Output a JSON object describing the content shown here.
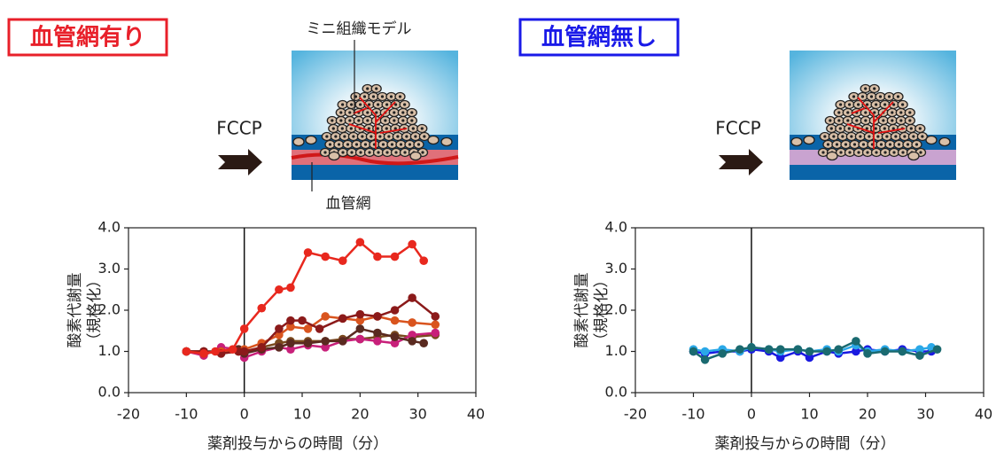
{
  "chart_data": [
    {
      "type": "line",
      "title": "血管網有り",
      "title_color": "#e8202a",
      "annotations": [
        "FCCP",
        "ミニ組織モデル",
        "血管網"
      ],
      "ylabel": [
        "酸素代謝量",
        "（規格化）"
      ],
      "xlabel": "薬剤投与からの時間（分）",
      "xlim": [
        -20,
        40
      ],
      "ylim": [
        0,
        4
      ],
      "xticks": [
        -20,
        -10,
        0,
        10,
        20,
        30,
        40
      ],
      "yticks": [
        {
          "value": 0,
          "label": "0.0"
        },
        {
          "value": 1,
          "label": "1.0"
        },
        {
          "value": 2,
          "label": "2.0"
        },
        {
          "value": 3,
          "label": "3.0"
        },
        {
          "value": 4,
          "label": "4.0"
        }
      ],
      "vline": 0,
      "series": [
        {
          "color": "#7a4a1e",
          "x": [
            -10,
            -7,
            -4,
            -1,
            0,
            3,
            6,
            8,
            11,
            14,
            17,
            20,
            23,
            26,
            29,
            33
          ],
          "values": [
            1.0,
            1.0,
            0.95,
            1.0,
            0.95,
            1.1,
            1.2,
            1.25,
            1.25,
            1.25,
            1.3,
            1.3,
            1.35,
            1.4,
            1.35,
            1.4
          ]
        },
        {
          "color": "#c8207a",
          "x": [
            -10,
            -7,
            -4,
            -1,
            0,
            3,
            6,
            8,
            11,
            14,
            17,
            20,
            23,
            26,
            29,
            33
          ],
          "values": [
            1.0,
            0.9,
            1.1,
            1.05,
            0.85,
            1.0,
            1.1,
            1.05,
            1.15,
            1.1,
            1.25,
            1.3,
            1.25,
            1.2,
            1.4,
            1.45
          ]
        },
        {
          "color": "#5a2a20",
          "x": [
            -10,
            -7,
            -4,
            -1,
            0,
            3,
            6,
            8,
            11,
            14,
            17,
            20,
            23,
            26,
            29,
            31
          ],
          "values": [
            1.0,
            1.0,
            1.0,
            1.05,
            0.95,
            1.05,
            1.1,
            1.2,
            1.2,
            1.25,
            1.25,
            1.55,
            1.45,
            1.35,
            1.25,
            1.2
          ]
        },
        {
          "color": "#d9541e",
          "x": [
            -10,
            -7,
            -4,
            -1,
            0,
            3,
            6,
            8,
            11,
            14,
            17,
            20,
            23,
            26,
            29,
            33
          ],
          "values": [
            1.0,
            0.95,
            1.0,
            1.0,
            1.05,
            1.2,
            1.4,
            1.6,
            1.55,
            1.85,
            1.8,
            1.75,
            1.85,
            1.75,
            1.7,
            1.65
          ]
        },
        {
          "color": "#8b1a1a",
          "x": [
            -10,
            -7,
            -4,
            -1,
            0,
            3,
            6,
            8,
            10,
            13,
            17,
            20,
            23,
            26,
            29,
            33
          ],
          "values": [
            1.0,
            1.0,
            0.95,
            1.0,
            1.0,
            1.1,
            1.55,
            1.75,
            1.75,
            1.55,
            1.8,
            1.9,
            1.85,
            2.0,
            2.3,
            1.85
          ]
        },
        {
          "color": "#e8281e",
          "x": [
            -10,
            -7,
            -5,
            -2,
            0,
            3,
            6,
            8,
            11,
            14,
            17,
            20,
            23,
            26,
            29,
            31
          ],
          "values": [
            1.0,
            0.95,
            1.0,
            1.05,
            1.55,
            2.05,
            2.5,
            2.55,
            3.4,
            3.3,
            3.2,
            3.65,
            3.3,
            3.3,
            3.6,
            3.2
          ]
        }
      ]
    },
    {
      "type": "line",
      "title": "血管網無し",
      "title_color": "#1a1ae8",
      "annotations": [
        "FCCP"
      ],
      "ylabel": [
        "酸素代謝量",
        "（規格化）"
      ],
      "xlabel": "薬剤投与からの時間（分）",
      "xlim": [
        -20,
        40
      ],
      "ylim": [
        0,
        4
      ],
      "xticks": [
        -20,
        -10,
        0,
        10,
        20,
        30,
        40
      ],
      "yticks": [
        {
          "value": 0,
          "label": "0.0"
        },
        {
          "value": 1,
          "label": "1.0"
        },
        {
          "value": 2,
          "label": "2.0"
        },
        {
          "value": 3,
          "label": "3.0"
        },
        {
          "value": 4,
          "label": "4.0"
        }
      ],
      "vline": 0,
      "series": [
        {
          "color": "#1a1ae0",
          "x": [
            -10,
            -8,
            -5,
            -2,
            0,
            3,
            5,
            8,
            10,
            13,
            15,
            18,
            20,
            23,
            26,
            29,
            31
          ],
          "values": [
            1.0,
            0.95,
            1.0,
            1.0,
            1.05,
            1.0,
            0.85,
            1.0,
            0.85,
            1.0,
            0.95,
            1.0,
            1.05,
            1.0,
            1.05,
            1.0,
            1.0
          ]
        },
        {
          "color": "#2aa8e8",
          "x": [
            -10,
            -8,
            -5,
            -2,
            0,
            3,
            5,
            8,
            10,
            13,
            15,
            18,
            20,
            23,
            26,
            29,
            31
          ],
          "values": [
            1.05,
            1.0,
            1.05,
            1.0,
            1.1,
            1.05,
            1.0,
            1.05,
            1.0,
            1.05,
            1.0,
            1.15,
            1.0,
            1.05,
            1.0,
            1.05,
            1.1
          ]
        },
        {
          "color": "#1a6a70",
          "x": [
            -10,
            -8,
            -5,
            -2,
            0,
            3,
            5,
            8,
            10,
            13,
            15,
            18,
            20,
            23,
            26,
            29,
            32
          ],
          "values": [
            1.0,
            0.8,
            0.95,
            1.05,
            1.1,
            1.05,
            1.05,
            1.05,
            1.0,
            1.0,
            1.05,
            1.25,
            0.95,
            1.0,
            1.0,
            0.9,
            1.05
          ]
        }
      ]
    }
  ]
}
